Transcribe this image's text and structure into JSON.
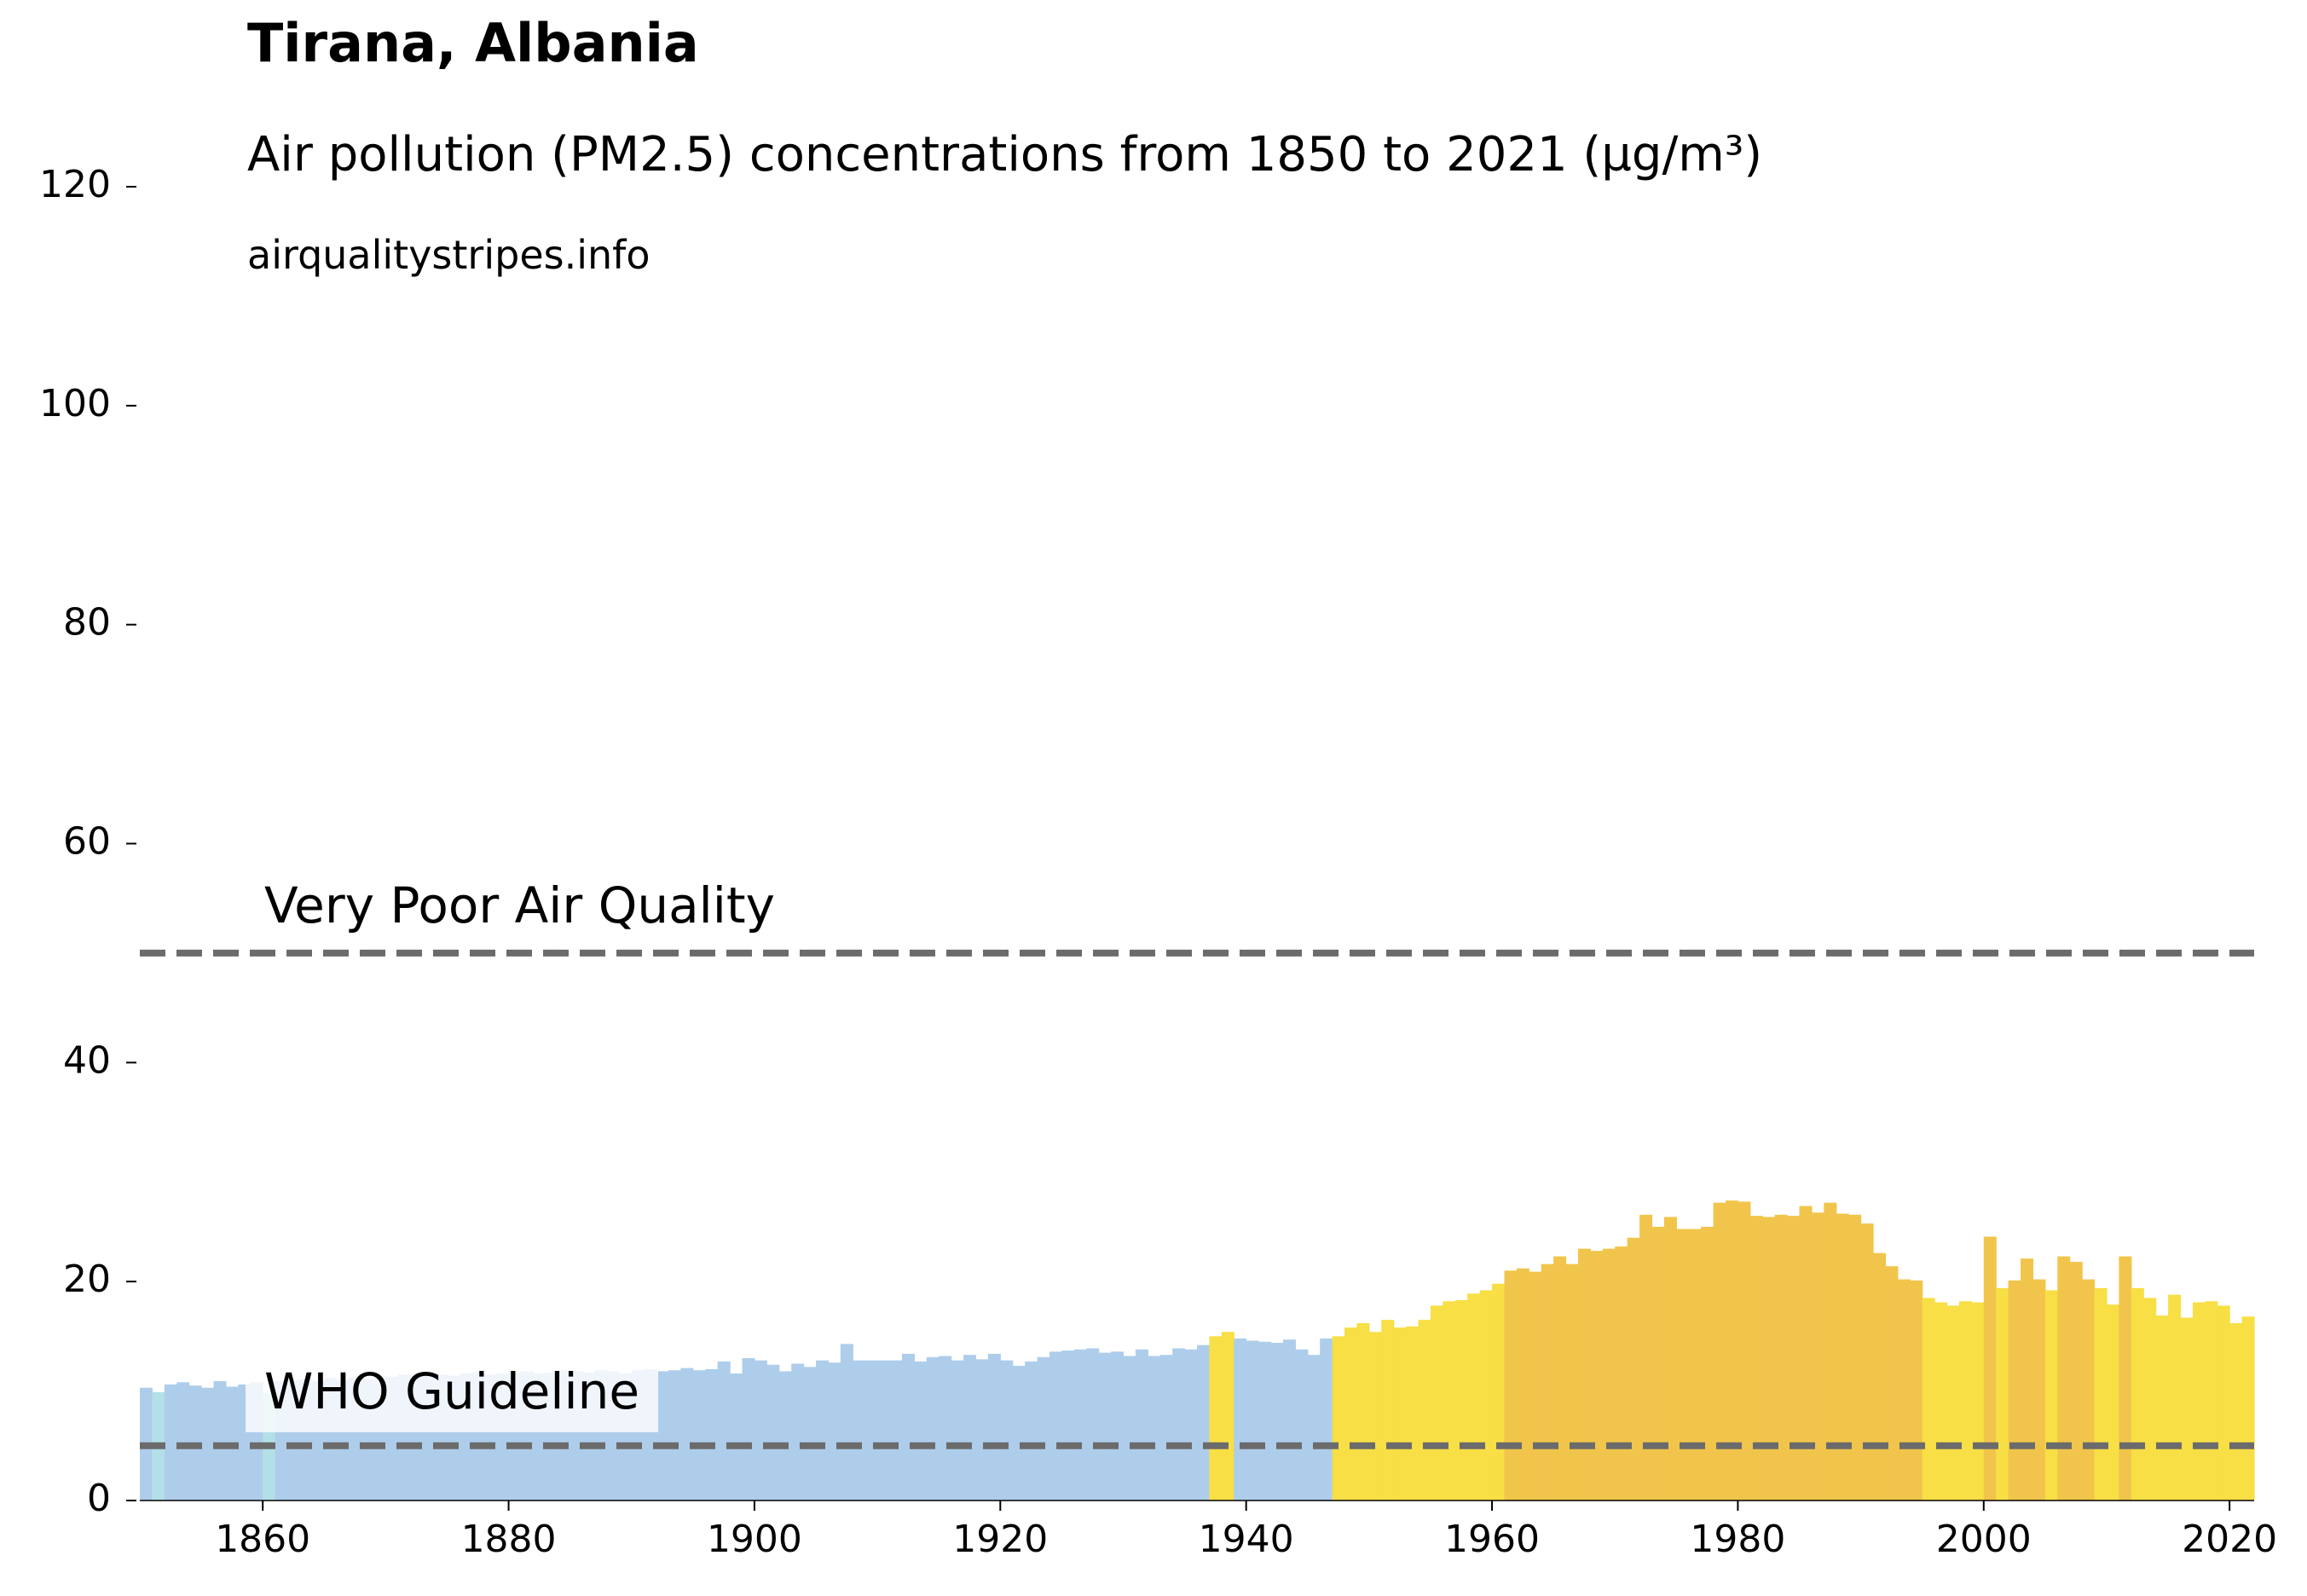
{
  "chart_data": {
    "type": "bar",
    "title": "Tirana, Albania",
    "subtitle": "Air pollution (PM2.5) concentrations from 1850 to 2021 (µg/m³)",
    "source": "airqualitystripes.info",
    "x": [
      1850,
      1851,
      1852,
      1853,
      1854,
      1855,
      1856,
      1857,
      1858,
      1859,
      1860,
      1861,
      1862,
      1863,
      1864,
      1865,
      1866,
      1867,
      1868,
      1869,
      1870,
      1871,
      1872,
      1873,
      1874,
      1875,
      1876,
      1877,
      1878,
      1879,
      1880,
      1881,
      1882,
      1883,
      1884,
      1885,
      1886,
      1887,
      1888,
      1889,
      1890,
      1891,
      1892,
      1893,
      1894,
      1895,
      1896,
      1897,
      1898,
      1899,
      1900,
      1901,
      1902,
      1903,
      1904,
      1905,
      1906,
      1907,
      1908,
      1909,
      1910,
      1911,
      1912,
      1913,
      1914,
      1915,
      1916,
      1917,
      1918,
      1919,
      1920,
      1921,
      1922,
      1923,
      1924,
      1925,
      1926,
      1927,
      1928,
      1929,
      1930,
      1931,
      1932,
      1933,
      1934,
      1935,
      1936,
      1937,
      1938,
      1939,
      1940,
      1941,
      1942,
      1943,
      1944,
      1945,
      1946,
      1947,
      1948,
      1949,
      1950,
      1951,
      1952,
      1953,
      1954,
      1955,
      1956,
      1957,
      1958,
      1959,
      1960,
      1961,
      1962,
      1963,
      1964,
      1965,
      1966,
      1967,
      1968,
      1969,
      1970,
      1971,
      1972,
      1973,
      1974,
      1975,
      1976,
      1977,
      1978,
      1979,
      1980,
      1981,
      1982,
      1983,
      1984,
      1985,
      1986,
      1987,
      1988,
      1989,
      1990,
      1991,
      1992,
      1993,
      1994,
      1995,
      1996,
      1997,
      1998,
      1999,
      2000,
      2001,
      2002,
      2003,
      2004,
      2005,
      2006,
      2007,
      2008,
      2009,
      2010,
      2011,
      2012,
      2013,
      2014,
      2015,
      2016,
      2017,
      2018,
      2019,
      2020,
      2021
    ],
    "values": [
      10.3,
      9.9,
      10.6,
      10.8,
      10.5,
      10.3,
      10.9,
      10.4,
      10.6,
      10.8,
      9.8,
      10.9,
      11.0,
      11.1,
      10.9,
      11.2,
      11.0,
      11.3,
      11.1,
      11.4,
      11.3,
      11.5,
      11.4,
      11.6,
      11.5,
      11.4,
      11.6,
      11.7,
      11.5,
      11.6,
      11.7,
      11.8,
      11.6,
      11.7,
      11.9,
      11.8,
      11.7,
      11.9,
      11.8,
      11.6,
      11.9,
      12.0,
      11.8,
      11.9,
      12.1,
      11.9,
      12.0,
      12.7,
      11.6,
      13.0,
      12.8,
      12.4,
      11.8,
      12.5,
      12.2,
      12.8,
      12.6,
      14.3,
      12.8,
      12.8,
      12.8,
      12.8,
      13.4,
      12.7,
      13.1,
      13.2,
      12.8,
      13.3,
      12.9,
      13.4,
      12.8,
      12.3,
      12.7,
      13.1,
      13.6,
      13.7,
      13.8,
      13.9,
      13.5,
      13.6,
      13.2,
      13.8,
      13.2,
      13.3,
      13.9,
      13.8,
      14.2,
      15.0,
      15.4,
      14.8,
      14.6,
      14.5,
      14.4,
      14.7,
      13.8,
      13.3,
      14.8,
      15.0,
      15.8,
      16.2,
      15.4,
      16.5,
      15.8,
      15.9,
      16.5,
      17.8,
      18.2,
      18.3,
      18.9,
      19.2,
      19.8,
      21.0,
      21.2,
      20.9,
      21.6,
      22.3,
      21.6,
      23.0,
      22.8,
      23.0,
      23.2,
      24.0,
      26.1,
      25.0,
      25.9,
      24.8,
      24.8,
      25.0,
      27.2,
      27.4,
      27.3,
      26.0,
      25.9,
      26.1,
      26.0,
      26.9,
      26.3,
      27.2,
      26.2,
      26.1,
      25.3,
      22.6,
      21.4,
      20.2,
      20.1,
      18.5,
      18.1,
      17.8,
      18.2,
      18.1,
      24.1,
      19.4,
      20.1,
      22.1,
      20.2,
      19.2,
      22.3,
      21.8,
      20.2,
      19.4,
      17.9,
      22.3,
      19.4,
      18.5,
      16.9,
      18.8,
      16.7,
      18.1,
      18.2,
      17.8,
      16.2,
      16.8
    ],
    "color_scale": {
      "thresholds": [
        10,
        15,
        20
      ],
      "colors": [
        "#b3e0e6",
        "#aecdeb",
        "#f7df45",
        "#f1c54b"
      ]
    },
    "xlim": [
      1850,
      2022
    ],
    "xticks": [
      1860,
      1880,
      1900,
      1920,
      1940,
      1960,
      1980,
      2000,
      2020
    ],
    "ylim": [
      0,
      120
    ],
    "yticks": [
      0,
      20,
      40,
      60,
      80,
      100,
      120
    ],
    "reference_lines": [
      {
        "value": 50,
        "label": "Very Poor Air Quality"
      },
      {
        "value": 5,
        "label": "WHO Guideline"
      }
    ],
    "reference_color": "#6b6b6b"
  }
}
